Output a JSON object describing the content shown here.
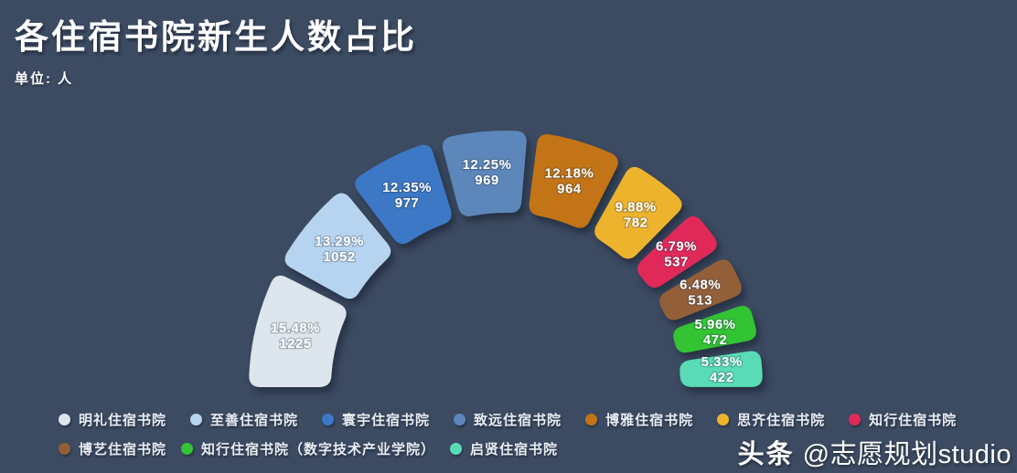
{
  "page": {
    "background": "#3c4b62"
  },
  "header": {
    "title": "各住宿书院新生人数占比",
    "title_color": "#ffffff",
    "subtitle": "单位: 人"
  },
  "watermark": {
    "brand": "头条",
    "handle": "@志愿规划studio"
  },
  "chart_data": {
    "type": "pie",
    "variant": "semi-donut-arch",
    "title": "各住宿书院新生人数占比",
    "unit": "人",
    "arc_degrees": 180,
    "legend_position": "bottom",
    "label_text_color": "#ffffff",
    "segments": [
      {
        "label": "明礼住宿书院",
        "value": 1225,
        "pct": 15.48,
        "pct_label": "15.48%",
        "color": "#dde5ed"
      },
      {
        "label": "至善住宿书院",
        "value": 1052,
        "pct": 13.29,
        "pct_label": "13.29%",
        "color": "#b6d4f0"
      },
      {
        "label": "寰宇住宿书院",
        "value": 977,
        "pct": 12.35,
        "pct_label": "12.35%",
        "color": "#3d78c6"
      },
      {
        "label": "致远住宿书院",
        "value": 969,
        "pct": 12.25,
        "pct_label": "12.25%",
        "color": "#5d87ba"
      },
      {
        "label": "博雅住宿书院",
        "value": 964,
        "pct": 12.18,
        "pct_label": "12.18%",
        "color": "#c27416"
      },
      {
        "label": "思齐住宿书院",
        "value": 782,
        "pct": 9.88,
        "pct_label": "9.88%",
        "color": "#edb32d"
      },
      {
        "label": "知行住宿书院",
        "value": 537,
        "pct": 6.79,
        "pct_label": "6.79%",
        "color": "#e12959"
      },
      {
        "label": "博艺住宿书院",
        "value": 513,
        "pct": 6.48,
        "pct_label": "6.48%",
        "color": "#935f38"
      },
      {
        "label": "知行住宿书院（数字技术产业学院）",
        "value": 472,
        "pct": 5.96,
        "pct_label": "5.96%",
        "color": "#32c433"
      },
      {
        "label": "启贤住宿书院",
        "value": 422,
        "pct": 5.33,
        "pct_label": "5.33%",
        "color": "#59dcb5"
      }
    ],
    "legend_rows": [
      [
        0,
        1,
        2,
        3,
        4,
        5,
        6
      ],
      [
        7,
        8,
        9
      ]
    ]
  }
}
